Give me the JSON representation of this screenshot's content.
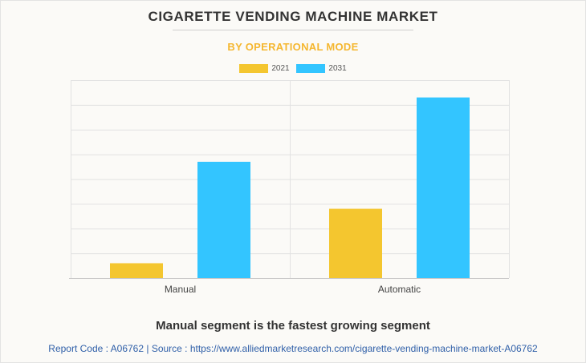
{
  "header": {
    "title": "CIGARETTE VENDING MACHINE MARKET",
    "subtitle": "BY OPERATIONAL MODE"
  },
  "colors": {
    "series_2021": "#f4c62f",
    "series_2031": "#33c5ff",
    "subtitle": "#f5b730",
    "source_link": "#2f5fa8"
  },
  "chart_data": {
    "type": "bar",
    "categories": [
      "Manual",
      "Automatic"
    ],
    "series": [
      {
        "name": "2021",
        "values": [
          0.6,
          2.8
        ]
      },
      {
        "name": "2031",
        "values": [
          4.7,
          7.3
        ]
      }
    ],
    "ylim": [
      0,
      8
    ],
    "y_ticks_labeled": false,
    "grid": true,
    "legend_position": "top-center"
  },
  "footer": {
    "caption": "Manual segment is the fastest growing segment",
    "source": "Report Code : A06762  |  Source : https://www.alliedmarketresearch.com/cigarette-vending-machine-market-A06762"
  }
}
